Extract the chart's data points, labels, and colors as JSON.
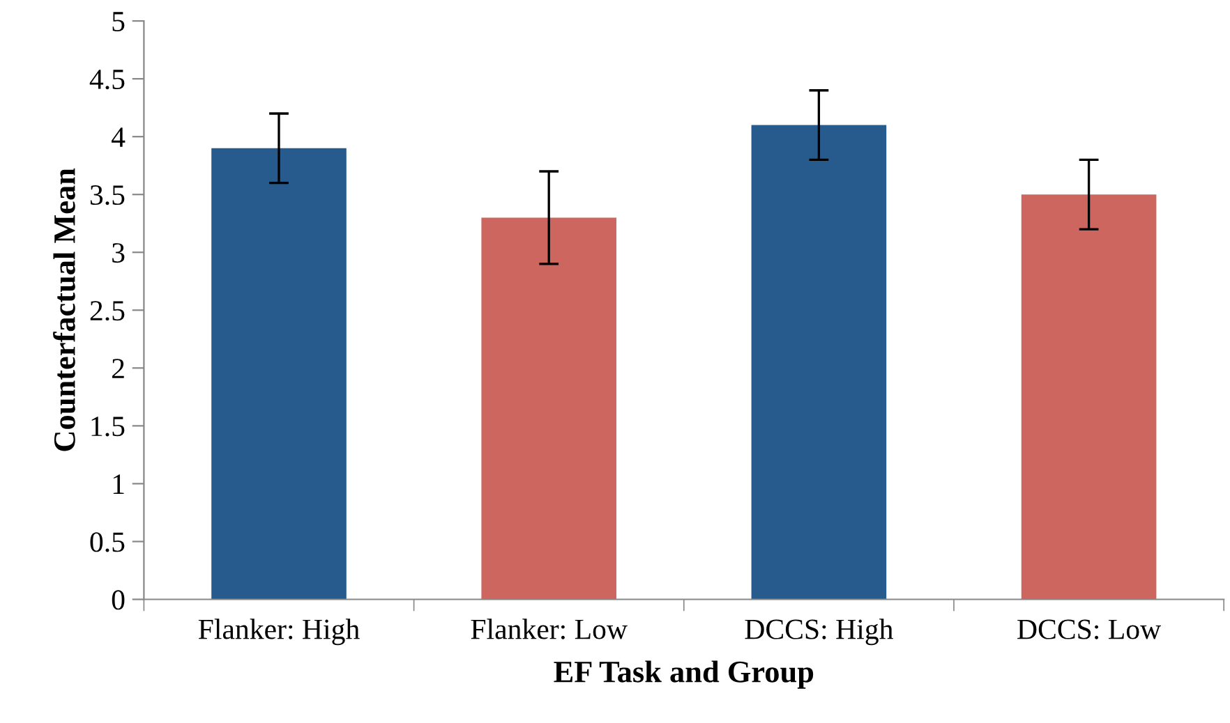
{
  "chart_data": {
    "type": "bar",
    "xlabel": "EF Task and Group",
    "ylabel": "Counterfactual Mean",
    "categories": [
      "Flanker: High",
      "Flanker: Low",
      "DCCS: High",
      "DCCS: Low"
    ],
    "values": [
      3.9,
      3.3,
      4.1,
      3.5
    ],
    "colors": [
      "#275b8e",
      "#cd665f",
      "#275b8e",
      "#cd665f"
    ],
    "errors": [
      0.3,
      0.4,
      0.3,
      0.3
    ],
    "ylim": [
      0,
      5
    ],
    "yticks": [
      0,
      0.5,
      1,
      1.5,
      2,
      2.5,
      3,
      3.5,
      4,
      4.5,
      5
    ],
    "grid": false,
    "legend": false
  }
}
